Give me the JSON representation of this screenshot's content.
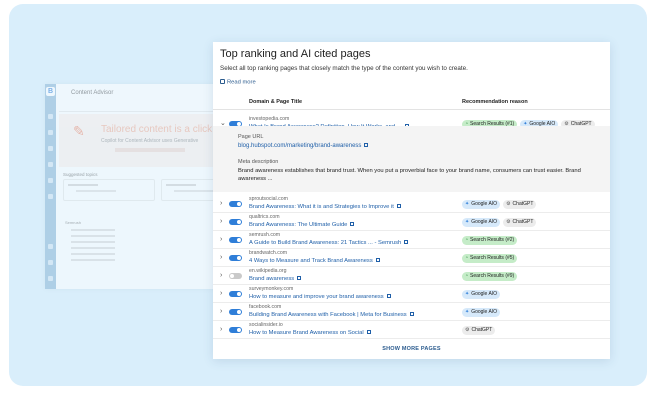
{
  "background_app": {
    "title": "Content Advisor",
    "banner_heading": "Tailored content is a click away",
    "banner_text": "Copilot for Content Advisor uses Generative",
    "suggested_label": "Suggested topics",
    "card_1": "Q1: get st",
    "card_2": "Q2: Learn more abt br",
    "list_heading": "Semrush"
  },
  "panel": {
    "title": "Top ranking and AI cited pages",
    "subtitle": "Select all top ranking pages that closely match the type of the content you wish to create.",
    "read_more": "Read more",
    "columns": {
      "domain_page": "Domain & Page Title",
      "recommendation": "Recommendation reason"
    },
    "show_more": "SHOW MORE PAGES"
  },
  "badge_labels": {
    "google_aio": "Google AIO",
    "chatgpt": "ChatGPT"
  },
  "detail": {
    "url_label": "Page URL",
    "url": "blog.hubspot.com/marketing/brand-awareness",
    "meta_label": "Meta description",
    "meta_text": "Brand awareness establishes that brand trust. When you put a proverbial face to your brand name, consumers can trust easier. Brand awareness ..."
  },
  "rows": [
    {
      "domain": "investopedia.com",
      "title": "What Is Brand Awareness? Definition, How It Works, and ...",
      "toggle": "on",
      "search_result": "Search Results (#1)",
      "google_aio": true,
      "chatgpt": true
    },
    {
      "domain": "sproutsocial.com",
      "title": "Brand Awareness: What it is and Strategies to Improve it",
      "toggle": "on",
      "search_result": "",
      "google_aio": true,
      "chatgpt": true
    },
    {
      "domain": "qualtrics.com",
      "title": "Brand Awareness: The Ultimate Guide",
      "toggle": "on",
      "search_result": "",
      "google_aio": true,
      "chatgpt": true
    },
    {
      "domain": "semrush.com",
      "title": "A Guide to Build Brand Awareness: 21 Tactics ... - Semrush",
      "toggle": "on",
      "search_result": "Search Results (#2)",
      "google_aio": false,
      "chatgpt": false
    },
    {
      "domain": "brandwatch.com",
      "title": "4 Ways to Measure and Track Brand Awareness",
      "toggle": "on",
      "search_result": "Search Results (#5)",
      "google_aio": false,
      "chatgpt": false
    },
    {
      "domain": "en.wikipedia.org",
      "title": "Brand awareness",
      "toggle": "off",
      "search_result": "Search Results (#9)",
      "google_aio": false,
      "chatgpt": false
    },
    {
      "domain": "surveymonkey.com",
      "title": "How to measure and improve your brand awareness",
      "toggle": "on",
      "search_result": "",
      "google_aio": true,
      "chatgpt": false
    },
    {
      "domain": "facebook.com",
      "title": "Building Brand Awareness with Facebook | Meta for Business",
      "toggle": "on",
      "search_result": "",
      "google_aio": true,
      "chatgpt": false
    },
    {
      "domain": "socialinsider.io",
      "title": "How to Measure Brand Awareness on Social",
      "toggle": "on",
      "search_result": "",
      "google_aio": false,
      "chatgpt": true
    }
  ]
}
